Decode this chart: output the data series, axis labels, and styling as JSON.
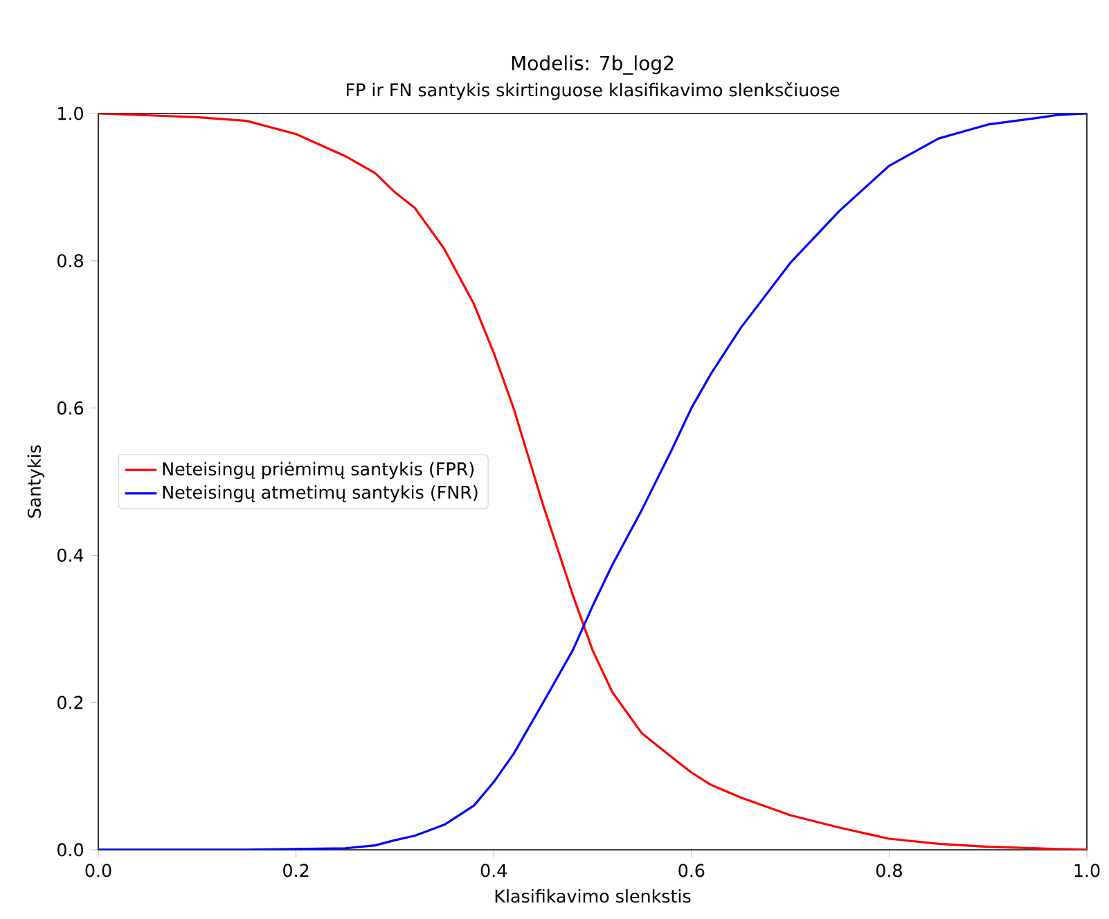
{
  "chart_data": {
    "type": "line",
    "title": "Modelis: 7b_log2",
    "subtitle": "FP ir FN santykis skirtinguose klasifikavimo slenksčiuose",
    "xlabel": "Klasifikavimo slenkstis",
    "ylabel": "Santykis",
    "x": [
      0,
      0.1,
      0.15,
      0.2,
      0.25,
      0.28,
      0.3,
      0.32,
      0.35,
      0.38,
      0.4,
      0.42,
      0.45,
      0.48,
      0.5,
      0.52,
      0.55,
      0.58,
      0.6,
      0.62,
      0.65,
      0.7,
      0.75,
      0.8,
      0.85,
      0.9,
      0.95,
      0.97,
      1.0
    ],
    "series": [
      {
        "name": "Neteisingų priėmimų santykis (FPR)",
        "color": "#ff0000",
        "values": [
          1.0,
          0.995,
          0.99,
          0.972,
          0.942,
          0.919,
          0.893,
          0.872,
          0.816,
          0.741,
          0.675,
          0.6,
          0.468,
          0.346,
          0.271,
          0.214,
          0.158,
          0.126,
          0.105,
          0.088,
          0.071,
          0.047,
          0.03,
          0.015,
          0.008,
          0.004,
          0.002,
          0.001,
          0.0
        ]
      },
      {
        "name": "Neteisingų atmetimų santykis (FNR)",
        "color": "#0000ff",
        "values": [
          0.0,
          0.0,
          0.0,
          0.001,
          0.002,
          0.006,
          0.013,
          0.019,
          0.034,
          0.06,
          0.092,
          0.13,
          0.2,
          0.271,
          0.331,
          0.387,
          0.462,
          0.543,
          0.6,
          0.647,
          0.709,
          0.797,
          0.868,
          0.929,
          0.966,
          0.985,
          0.994,
          0.998,
          1.0
        ]
      }
    ],
    "xlim": [
      0,
      1
    ],
    "ylim": [
      0,
      1
    ],
    "xticks": [
      {
        "value": 0,
        "label": "0.0"
      },
      0.2,
      0.4,
      0.6,
      0.8,
      {
        "value": 1,
        "label": "1.0"
      }
    ],
    "yticks": [
      {
        "value": 0,
        "label": "0.0"
      },
      0.2,
      0.4,
      0.6,
      0.8,
      {
        "value": 1,
        "label": "1.0"
      }
    ],
    "legend": "left",
    "grid": false,
    "marker": "none",
    "line_style": "solid"
  }
}
